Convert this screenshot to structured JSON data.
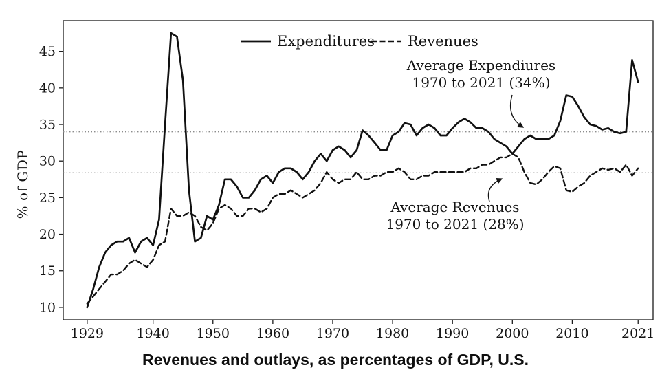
{
  "caption": "Revenues and outlays, as percentages of GDP, U.S.",
  "chart_data": {
    "type": "line",
    "title": "",
    "xlabel": "",
    "ylabel": "% of GDP",
    "grid": false,
    "legend_position": "top-center",
    "line_color": "#111111",
    "reference_line_color": "#8c8c8c",
    "xlim": [
      1925,
      2023.5
    ],
    "ylim": [
      8.3,
      49.2
    ],
    "x_ticks": [
      1929,
      1940,
      1950,
      1960,
      1970,
      1980,
      1990,
      2000,
      2010,
      2021
    ],
    "y_ticks": [
      10,
      15,
      20,
      25,
      30,
      35,
      40,
      45
    ],
    "x": [
      1929,
      1930,
      1931,
      1932,
      1933,
      1934,
      1935,
      1936,
      1937,
      1938,
      1939,
      1940,
      1941,
      1942,
      1943,
      1944,
      1945,
      1946,
      1947,
      1948,
      1949,
      1950,
      1951,
      1952,
      1953,
      1954,
      1955,
      1956,
      1957,
      1958,
      1959,
      1960,
      1961,
      1962,
      1963,
      1964,
      1965,
      1966,
      1967,
      1968,
      1969,
      1970,
      1971,
      1972,
      1973,
      1974,
      1975,
      1976,
      1977,
      1978,
      1979,
      1980,
      1981,
      1982,
      1983,
      1984,
      1985,
      1986,
      1987,
      1988,
      1989,
      1990,
      1991,
      1992,
      1993,
      1994,
      1995,
      1996,
      1997,
      1998,
      1999,
      2000,
      2001,
      2002,
      2003,
      2004,
      2005,
      2006,
      2007,
      2008,
      2009,
      2010,
      2011,
      2012,
      2013,
      2014,
      2015,
      2016,
      2017,
      2018,
      2019,
      2020,
      2021
    ],
    "series": [
      {
        "name": "Expenditures",
        "style": "solid",
        "values": [
          10.0,
          12.5,
          15.5,
          17.5,
          18.5,
          19.0,
          19.0,
          19.5,
          17.5,
          19.0,
          19.5,
          18.5,
          22.0,
          35.0,
          47.5,
          47.0,
          41.0,
          26.0,
          19.0,
          19.5,
          22.5,
          22.0,
          24.0,
          27.5,
          27.5,
          26.5,
          25.0,
          25.0,
          26.0,
          27.5,
          28.0,
          27.0,
          28.5,
          29.0,
          29.0,
          28.5,
          27.5,
          28.5,
          30.0,
          31.0,
          30.0,
          31.5,
          32.0,
          31.5,
          30.5,
          31.5,
          34.2,
          33.5,
          32.5,
          31.5,
          31.5,
          33.5,
          34.0,
          35.2,
          35.0,
          33.5,
          34.5,
          35.0,
          34.5,
          33.5,
          33.5,
          34.5,
          35.3,
          35.8,
          35.3,
          34.5,
          34.5,
          34.0,
          33.0,
          32.5,
          32.0,
          31.0,
          32.0,
          33.0,
          33.5,
          33.0,
          33.0,
          33.0,
          33.5,
          35.5,
          39.0,
          38.8,
          37.5,
          36.0,
          35.0,
          34.8,
          34.3,
          34.5,
          34.0,
          33.8,
          34.0,
          43.8,
          40.8
        ]
      },
      {
        "name": "Revenues",
        "style": "dashed",
        "values": [
          10.5,
          11.5,
          12.5,
          13.5,
          14.5,
          14.5,
          15.0,
          16.0,
          16.5,
          16.0,
          15.5,
          16.5,
          18.5,
          19.0,
          23.5,
          22.5,
          22.5,
          23.0,
          22.5,
          21.0,
          20.5,
          21.5,
          23.5,
          24.0,
          23.5,
          22.5,
          22.5,
          23.5,
          23.5,
          23.0,
          23.5,
          25.0,
          25.5,
          25.5,
          26.0,
          25.5,
          25.0,
          25.5,
          26.0,
          27.0,
          28.5,
          27.5,
          27.0,
          27.5,
          27.5,
          28.5,
          27.5,
          27.5,
          28.0,
          28.0,
          28.5,
          28.5,
          29.0,
          28.5,
          27.5,
          27.5,
          28.0,
          28.0,
          28.5,
          28.5,
          28.5,
          28.5,
          28.5,
          28.5,
          29.0,
          29.0,
          29.5,
          29.5,
          30.0,
          30.5,
          30.5,
          31.0,
          30.5,
          28.5,
          27.0,
          26.8,
          27.5,
          28.5,
          29.3,
          29.0,
          26.0,
          25.8,
          26.5,
          27.0,
          28.0,
          28.5,
          29.0,
          28.8,
          29.0,
          28.5,
          29.5,
          28.0,
          29.0
        ]
      }
    ],
    "reference_lines": [
      {
        "value": 34.0,
        "style": "dotted",
        "label_lines": [
          "Average Expendiures",
          "1970 to 2021 (34%)"
        ]
      },
      {
        "value": 28.4,
        "style": "dotted",
        "label_lines": [
          "Average Revenues",
          "1970 to 2021 (28%)"
        ]
      }
    ]
  }
}
